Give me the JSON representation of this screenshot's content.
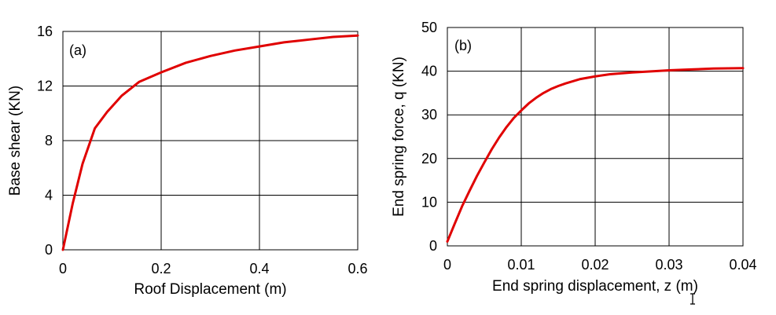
{
  "chart_data": [
    {
      "type": "line",
      "panel_label": "(a)",
      "xlabel": "Roof Displacement (m)",
      "ylabel": "Base shear (KN)",
      "xlim": [
        0,
        0.6
      ],
      "ylim": [
        0,
        16
      ],
      "x_ticks": [
        "0",
        "0.2",
        "0.4",
        "0.6"
      ],
      "y_ticks": [
        "0",
        "4",
        "8",
        "12",
        "16"
      ],
      "grid": true,
      "line_color": "#e00000",
      "series": [
        {
          "x": [
            0,
            0.02,
            0.04,
            0.065,
            0.09,
            0.12,
            0.155,
            0.2,
            0.25,
            0.3,
            0.35,
            0.4,
            0.45,
            0.5,
            0.55,
            0.6
          ],
          "y": [
            0,
            3.4,
            6.3,
            8.9,
            10.1,
            11.3,
            12.3,
            13.0,
            13.7,
            14.2,
            14.6,
            14.9,
            15.2,
            15.4,
            15.6,
            15.7
          ]
        }
      ]
    },
    {
      "type": "line",
      "panel_label": "(b)",
      "xlabel": "End spring displacement, z (m)",
      "ylabel": "End spring force, q (KN)",
      "xlim": [
        0,
        0.04
      ],
      "ylim": [
        0,
        50
      ],
      "x_ticks": [
        "0",
        "0.01",
        "0.02",
        "0.03",
        "0.04"
      ],
      "y_ticks": [
        "0",
        "10",
        "20",
        "30",
        "40",
        "50"
      ],
      "grid": true,
      "line_color": "#e00000",
      "series": [
        {
          "x": [
            0,
            0.001,
            0.002,
            0.003,
            0.004,
            0.005,
            0.006,
            0.007,
            0.008,
            0.009,
            0.01,
            0.011,
            0.012,
            0.013,
            0.014,
            0.015,
            0.016,
            0.018,
            0.02,
            0.022,
            0.025,
            0.028,
            0.03,
            0.033,
            0.036,
            0.04
          ],
          "y": [
            1,
            5.1,
            9.1,
            12.6,
            16.0,
            19.1,
            22.1,
            24.8,
            27.2,
            29.3,
            31.0,
            32.6,
            33.9,
            35.0,
            35.9,
            36.6,
            37.2,
            38.2,
            38.8,
            39.3,
            39.7,
            40.0,
            40.2,
            40.4,
            40.6,
            40.7
          ]
        }
      ]
    }
  ]
}
